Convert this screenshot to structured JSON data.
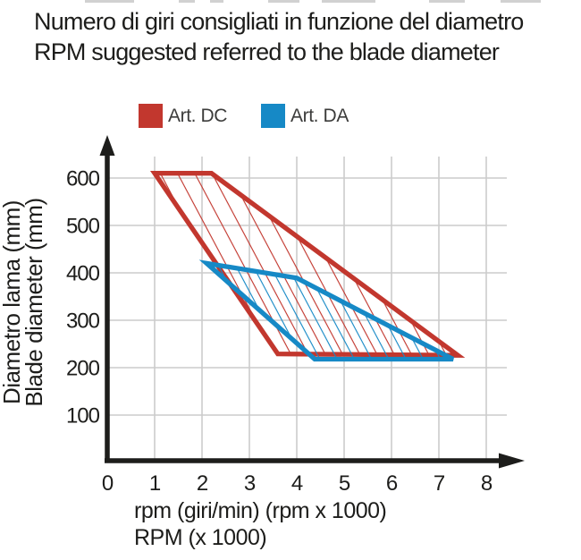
{
  "title": {
    "line1": "Numero di giri consigliati in funzione del diametro",
    "line2": "RPM suggested referred to the blade diameter"
  },
  "legend": [
    {
      "label": "Art. DC",
      "color": "#c2372e"
    },
    {
      "label": "Art. DA",
      "color": "#1689c6"
    }
  ],
  "colors": {
    "axis": "#1d1d1b",
    "grid": "#cbcbcb",
    "text": "#1d1d1b"
  },
  "chart_data": {
    "type": "area",
    "title_line1": "Numero di giri consigliati in funzione del diametro",
    "title_line2": "RPM suggested referred to the blade diameter",
    "xlabel_line1": "rpm (giri/min) (rpm x 1000)",
    "xlabel_line2": "RPM (x 1000)",
    "ylabel_line1": "Diametro lama (mm)",
    "ylabel_line2": "Blade diameter (mm)",
    "xlim": [
      0,
      8.5
    ],
    "ylim": [
      0,
      660
    ],
    "grid": true,
    "legend_position": "top",
    "x_ticks": [
      0,
      1,
      2,
      3,
      4,
      5,
      6,
      7,
      8
    ],
    "y_ticks": [
      100,
      200,
      300,
      400,
      500,
      600
    ],
    "series": [
      {
        "name": "Art. DC",
        "color": "#c2372e",
        "polygon": [
          [
            1.0,
            610
          ],
          [
            2.2,
            610
          ],
          [
            7.4,
            226
          ],
          [
            3.6,
            229
          ]
        ]
      },
      {
        "name": "Art. DA",
        "color": "#1689c6",
        "polygon": [
          [
            2.1,
            420
          ],
          [
            4.0,
            389
          ],
          [
            7.3,
            218
          ],
          [
            4.38,
            218
          ]
        ]
      }
    ],
    "hatch": {
      "angle_deg": 62,
      "spacing": 17,
      "stroke_width": 2.3
    }
  }
}
